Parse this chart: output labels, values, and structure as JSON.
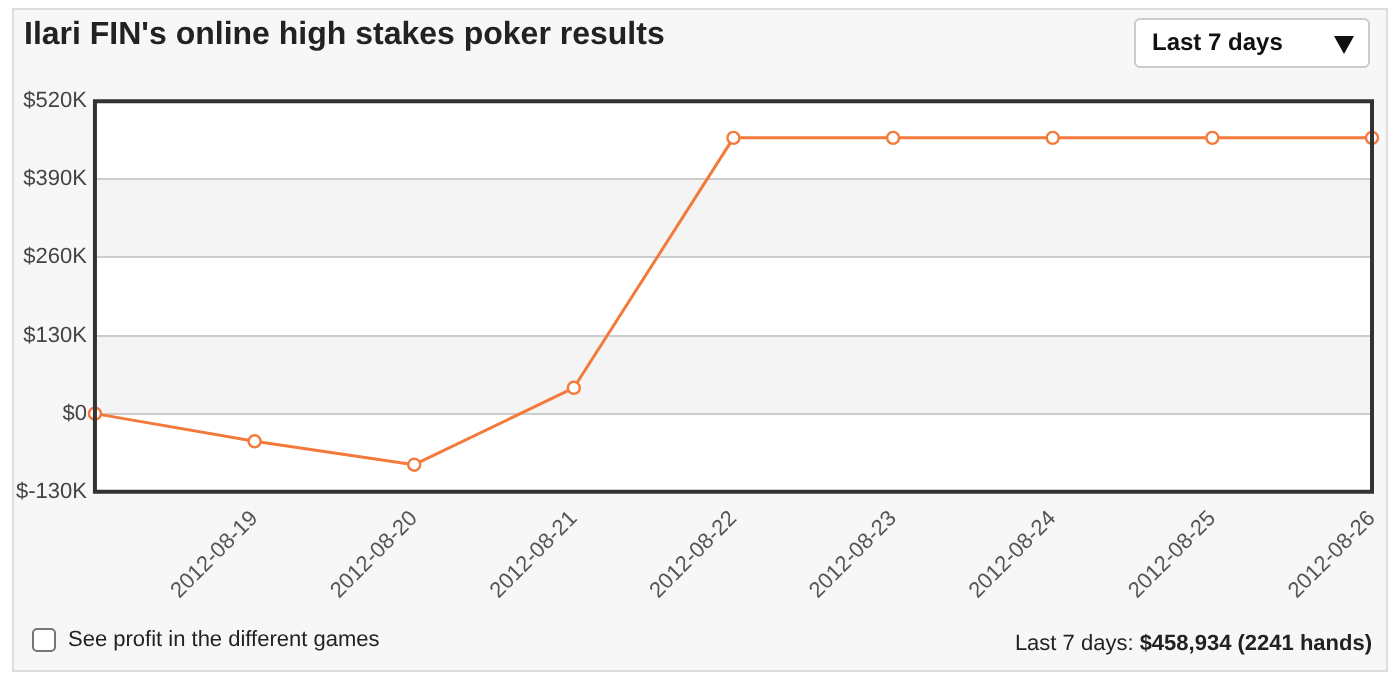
{
  "chart_data": {
    "type": "line",
    "title": "Ilari FIN's online high stakes poker results",
    "categories": [
      null,
      "2012-08-19",
      "2012-08-20",
      "2012-08-21",
      "2012-08-22",
      "2012-08-23",
      "2012-08-24",
      "2012-08-25",
      "2012-08-26"
    ],
    "series": [
      {
        "color": "#f47a3c",
        "values": [
          0,
          -46000,
          -85000,
          43000,
          459000,
          459000,
          459000,
          459000,
          459000
        ]
      }
    ],
    "ylim": [
      -130000,
      520000
    ],
    "yticks": [
      {
        "value": -130000,
        "label": "$-130K"
      },
      {
        "value": 0,
        "label": "$0"
      },
      {
        "value": 130000,
        "label": "$130K"
      },
      {
        "value": 260000,
        "label": "$260K"
      },
      {
        "value": 390000,
        "label": "$390K"
      },
      {
        "value": 520000,
        "label": "$520K"
      }
    ],
    "grid": "y",
    "legend": false,
    "marker": "circle",
    "line_style": "solid",
    "annotations": [
      "Last 7 days",
      "See profit in the different games",
      "Last 7 days: $458,934 (2241 hands)"
    ]
  }
}
